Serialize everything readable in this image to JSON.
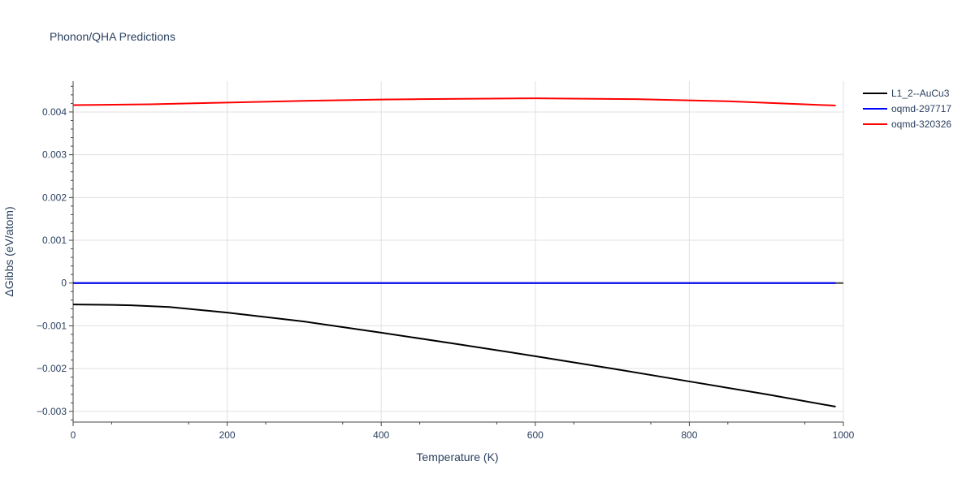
{
  "chart_data": {
    "type": "line",
    "title": "Phonon/QHA Predictions",
    "xlabel": "Temperature (K)",
    "ylabel": "ΔGibbs (eV/atom)",
    "xlim": [
      0,
      1000
    ],
    "ylim": [
      -0.00325,
      0.00472
    ],
    "x_ticks": [
      0,
      200,
      400,
      600,
      800,
      1000
    ],
    "x_tick_labels": [
      "0",
      "200",
      "400",
      "600",
      "800",
      "1000"
    ],
    "y_ticks": [
      -0.003,
      -0.002,
      -0.001,
      0,
      0.001,
      0.002,
      0.003,
      0.004
    ],
    "y_tick_labels": [
      "−0.003",
      "−0.002",
      "−0.001",
      "0",
      "0.001",
      "0.002",
      "0.003",
      "0.004"
    ],
    "grid": true,
    "legend_position": "top-right",
    "series": [
      {
        "name": "L1_2--AuCu3",
        "color": "#000000",
        "x": [
          0,
          50,
          75,
          125,
          200,
          300,
          400,
          500,
          600,
          700,
          800,
          900,
          990
        ],
        "y": [
          -0.0005,
          -0.00051,
          -0.00052,
          -0.00056,
          -0.00069,
          -0.0009,
          -0.00116,
          -0.00143,
          -0.00171,
          -0.002,
          -0.0023,
          -0.0026,
          -0.00289
        ]
      },
      {
        "name": "oqmd-297717",
        "color": "#0000ff",
        "x": [
          0,
          200,
          400,
          600,
          800,
          990
        ],
        "y": [
          0,
          0,
          0,
          0,
          0,
          0
        ]
      },
      {
        "name": "oqmd-320326",
        "color": "#ff0000",
        "x": [
          0,
          100,
          200,
          300,
          400,
          450,
          600,
          730,
          850,
          990
        ],
        "y": [
          0.00416,
          0.00418,
          0.00422,
          0.00426,
          0.00429,
          0.0043,
          0.00432,
          0.0043,
          0.00425,
          0.00415
        ]
      }
    ]
  }
}
